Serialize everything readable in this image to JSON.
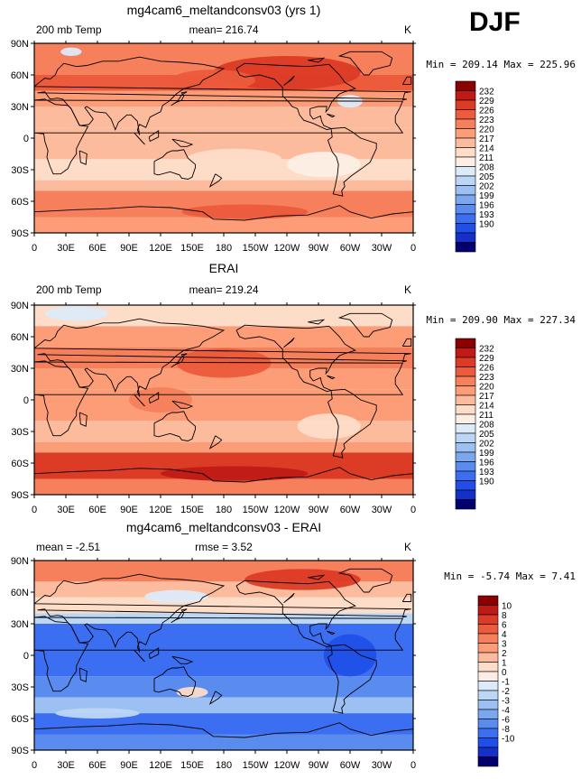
{
  "season_label": "DJF",
  "colors": {
    "warm": [
      "#fdeee5",
      "#fddcc8",
      "#fcbb9c",
      "#fc9d78",
      "#f67f5c",
      "#ec5b3b",
      "#dc3b25",
      "#c01a16",
      "#8b0000"
    ],
    "cool": [
      "#ddeaf9",
      "#bcd6f5",
      "#9cc0f1",
      "#7ba7ee",
      "#5a8cf0",
      "#3b6ef0",
      "#1f4fe8",
      "#1530c8",
      "#0c1a98",
      "#00006e"
    ],
    "land_outline": "#000000"
  },
  "lon_ticks": [
    "0",
    "30E",
    "60E",
    "90E",
    "120E",
    "150E",
    "180",
    "150W",
    "120W",
    "90W",
    "60W",
    "30W",
    "0"
  ],
  "lat_ticks": [
    "90N",
    "60N",
    "30N",
    "0",
    "30S",
    "60S",
    "90S"
  ],
  "chart_data": [
    {
      "type": "heatmap",
      "title": "mg4cam6_meltandconsv03 (yrs 1)",
      "left_label": "200 mb Temp",
      "center_label": "mean= 216.74",
      "units": "K",
      "stats": "Min = 209.14 Max = 225.96",
      "colorbar_levels": [
        "232",
        "229",
        "226",
        "223",
        "220",
        "217",
        "214",
        "211",
        "208",
        "205",
        "202",
        "199",
        "196",
        "193",
        "190"
      ],
      "colorbar_colors": [
        "#8b0000",
        "#c01a16",
        "#dc3b25",
        "#ec5b3b",
        "#f67f5c",
        "#fc9d78",
        "#fcbb9c",
        "#fddcc8",
        "#fdeee5",
        "#ddeaf9",
        "#bcd6f5",
        "#9cc0f1",
        "#7ba7ee",
        "#5a8cf0",
        "#3b6ef0",
        "#1f4fe8",
        "#1530c8",
        "#00006e"
      ],
      "lat_bands": [
        {
          "lat": [
            60,
            90
          ],
          "level": 4
        },
        {
          "lat": [
            45,
            60
          ],
          "level": 5
        },
        {
          "lat": [
            30,
            45
          ],
          "level": 3
        },
        {
          "lat": [
            10,
            30
          ],
          "level": 2
        },
        {
          "lat": [
            -20,
            10
          ],
          "level": 2
        },
        {
          "lat": [
            -40,
            -20
          ],
          "level": 1
        },
        {
          "lat": [
            -50,
            -40
          ],
          "level": 2
        },
        {
          "lat": [
            -75,
            -50
          ],
          "level": 4
        },
        {
          "lat": [
            -90,
            -75
          ],
          "level": 3
        }
      ],
      "blobs": [
        {
          "lon": 240,
          "lat": 62,
          "rlon": 70,
          "rlat": 16,
          "level": 6
        },
        {
          "lon": 170,
          "lat": 55,
          "rlon": 40,
          "rlat": 10,
          "level": 5
        },
        {
          "lon": 275,
          "lat": -25,
          "rlon": 35,
          "rlat": 12,
          "level": 0
        },
        {
          "lon": 190,
          "lat": -20,
          "rlon": 45,
          "rlat": 10,
          "level": 1
        },
        {
          "lon": 300,
          "lat": 35,
          "rlon": 12,
          "rlat": 6,
          "level": -1
        },
        {
          "lon": 35,
          "lat": 82,
          "rlon": 10,
          "rlat": 4,
          "level": -1
        },
        {
          "lon": 200,
          "lat": -70,
          "rlon": 60,
          "rlat": 7,
          "level": 5
        }
      ]
    },
    {
      "type": "heatmap",
      "title": "ERAI",
      "left_label": "200 mb Temp",
      "center_label": "mean= 219.24",
      "units": "K",
      "stats": "Min = 209.90 Max = 227.34",
      "colorbar_levels": [
        "232",
        "229",
        "226",
        "223",
        "220",
        "217",
        "214",
        "211",
        "208",
        "205",
        "202",
        "199",
        "196",
        "193",
        "190"
      ],
      "colorbar_colors": [
        "#8b0000",
        "#c01a16",
        "#dc3b25",
        "#ec5b3b",
        "#f67f5c",
        "#fc9d78",
        "#fcbb9c",
        "#fddcc8",
        "#fdeee5",
        "#ddeaf9",
        "#bcd6f5",
        "#9cc0f1",
        "#7ba7ee",
        "#5a8cf0",
        "#3b6ef0",
        "#1f4fe8",
        "#1530c8",
        "#00006e"
      ],
      "lat_bands": [
        {
          "lat": [
            70,
            90
          ],
          "level": 1
        },
        {
          "lat": [
            50,
            70
          ],
          "level": 3
        },
        {
          "lat": [
            30,
            50
          ],
          "level": 4
        },
        {
          "lat": [
            10,
            30
          ],
          "level": 3
        },
        {
          "lat": [
            -20,
            10
          ],
          "level": 3
        },
        {
          "lat": [
            -40,
            -20
          ],
          "level": 2
        },
        {
          "lat": [
            -50,
            -40
          ],
          "level": 3
        },
        {
          "lat": [
            -75,
            -50
          ],
          "level": 6
        },
        {
          "lat": [
            -90,
            -75
          ],
          "level": 4
        }
      ],
      "blobs": [
        {
          "lon": 40,
          "lat": 82,
          "rlon": 30,
          "rlat": 7,
          "level": -1
        },
        {
          "lon": 180,
          "lat": 35,
          "rlon": 45,
          "rlat": 14,
          "level": 5
        },
        {
          "lon": 280,
          "lat": -25,
          "rlon": 30,
          "rlat": 12,
          "level": 1
        },
        {
          "lon": 190,
          "lat": -70,
          "rlon": 70,
          "rlat": 7,
          "level": 7
        },
        {
          "lon": 120,
          "lat": 0,
          "rlon": 30,
          "rlat": 12,
          "level": 4
        }
      ]
    },
    {
      "type": "heatmap",
      "title": "mg4cam6_meltandconsv03 - ERAI",
      "left_label": "mean =  -2.51",
      "center_label": "rmse =    3.52",
      "units": "K",
      "stats": "Min =  -5.74 Max =    7.41",
      "colorbar_levels": [
        "10",
        "8",
        "6",
        "4",
        "3",
        "2",
        "1",
        "0",
        "-1",
        "-2",
        "-3",
        "-4",
        "-6",
        "-8",
        "-10"
      ],
      "colorbar_colors": [
        "#8b0000",
        "#c01a16",
        "#dc3b25",
        "#ec5b3b",
        "#f67f5c",
        "#fc9d78",
        "#fcbb9c",
        "#fddcc8",
        "#fdeee5",
        "#ddeaf9",
        "#bcd6f5",
        "#9cc0f1",
        "#7ba7ee",
        "#5a8cf0",
        "#3b6ef0",
        "#1f4fe8",
        "#1530c8",
        "#00006e"
      ],
      "lat_bands": [
        {
          "lat": [
            70,
            90
          ],
          "level": 4
        },
        {
          "lat": [
            55,
            70
          ],
          "level": 2
        },
        {
          "lat": [
            40,
            55
          ],
          "level": 1
        },
        {
          "lat": [
            30,
            40
          ],
          "level": -2
        },
        {
          "lat": [
            -20,
            30
          ],
          "level": -6
        },
        {
          "lat": [
            -40,
            -20
          ],
          "level": -5
        },
        {
          "lat": [
            -55,
            -40
          ],
          "level": -3
        },
        {
          "lat": [
            -75,
            -55
          ],
          "level": -6
        },
        {
          "lat": [
            -90,
            -75
          ],
          "level": -5
        }
      ],
      "blobs": [
        {
          "lon": 255,
          "lat": 72,
          "rlon": 55,
          "rlat": 10,
          "level": 6
        },
        {
          "lon": 135,
          "lat": 56,
          "rlon": 30,
          "rlat": 6,
          "level": -1
        },
        {
          "lon": 150,
          "lat": -35,
          "rlon": 15,
          "rlat": 5,
          "level": 1
        },
        {
          "lon": 60,
          "lat": -55,
          "rlon": 40,
          "rlat": 5,
          "level": -2
        },
        {
          "lon": 300,
          "lat": 0,
          "rlon": 25,
          "rlat": 20,
          "level": -7
        }
      ]
    }
  ]
}
